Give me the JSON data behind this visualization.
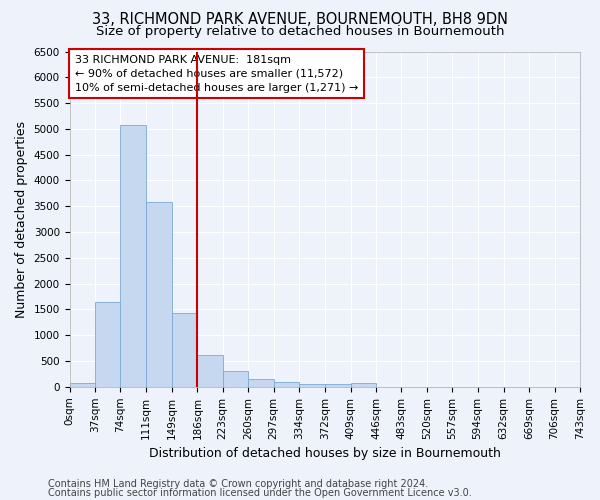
{
  "title1": "33, RICHMOND PARK AVENUE, BOURNEMOUTH, BH8 9DN",
  "title2": "Size of property relative to detached houses in Bournemouth",
  "xlabel": "Distribution of detached houses by size in Bournemouth",
  "ylabel": "Number of detached properties",
  "footer1": "Contains HM Land Registry data © Crown copyright and database right 2024.",
  "footer2": "Contains public sector information licensed under the Open Government Licence v3.0.",
  "annotation_line1": "33 RICHMOND PARK AVENUE:  181sqm",
  "annotation_line2": "← 90% of detached houses are smaller (11,572)",
  "annotation_line3": "10% of semi-detached houses are larger (1,271) →",
  "bin_edges": [
    0,
    37,
    74,
    111,
    149,
    186,
    223,
    260,
    297,
    334,
    372,
    409,
    446,
    483,
    520,
    557,
    594,
    632,
    669,
    706,
    743
  ],
  "bar_values": [
    70,
    1650,
    5070,
    3590,
    1430,
    620,
    310,
    160,
    90,
    60,
    50,
    70,
    0,
    0,
    0,
    0,
    0,
    0,
    0,
    0
  ],
  "bar_color": "#c5d8f0",
  "bar_edge_color": "#7aaad4",
  "vline_color": "#cc0000",
  "vline_x": 186,
  "ylim": [
    0,
    6500
  ],
  "yticks": [
    0,
    500,
    1000,
    1500,
    2000,
    2500,
    3000,
    3500,
    4000,
    4500,
    5000,
    5500,
    6000,
    6500
  ],
  "background_color": "#eef2fb",
  "grid_color": "#ffffff",
  "annotation_box_color": "#ffffff",
  "annotation_box_edge": "#cc0000",
  "title1_fontsize": 10.5,
  "title2_fontsize": 9.5,
  "axis_label_fontsize": 9,
  "tick_fontsize": 7.5,
  "annotation_fontsize": 8,
  "footer_fontsize": 7
}
